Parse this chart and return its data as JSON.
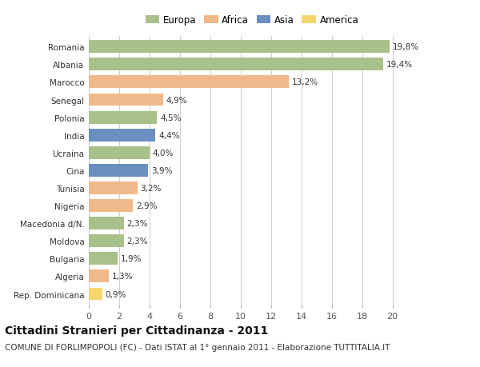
{
  "categories": [
    "Romania",
    "Albania",
    "Marocco",
    "Senegal",
    "Polonia",
    "India",
    "Ucraina",
    "Cina",
    "Tunisia",
    "Nigeria",
    "Macedonia d/N.",
    "Moldova",
    "Bulgaria",
    "Algeria",
    "Rep. Dominicana"
  ],
  "values": [
    19.8,
    19.4,
    13.2,
    4.9,
    4.5,
    4.4,
    4.0,
    3.9,
    3.2,
    2.9,
    2.3,
    2.3,
    1.9,
    1.3,
    0.9
  ],
  "labels": [
    "19,8%",
    "19,4%",
    "13,2%",
    "4,9%",
    "4,5%",
    "4,4%",
    "4,0%",
    "3,9%",
    "3,2%",
    "2,9%",
    "2,3%",
    "2,3%",
    "1,9%",
    "1,3%",
    "0,9%"
  ],
  "continents": [
    "Europa",
    "Europa",
    "Africa",
    "Africa",
    "Europa",
    "Asia",
    "Europa",
    "Asia",
    "Africa",
    "Africa",
    "Europa",
    "Europa",
    "Europa",
    "Africa",
    "America"
  ],
  "continent_colors": {
    "Europa": "#a8c08a",
    "Africa": "#f0b989",
    "Asia": "#6a8fc0",
    "America": "#f5d76e"
  },
  "legend_order": [
    "Europa",
    "Africa",
    "Asia",
    "America"
  ],
  "title": "Cittadini Stranieri per Cittadinanza - 2011",
  "subtitle": "COMUNE DI FORLIMPOPOLI (FC) - Dati ISTAT al 1° gennaio 2011 - Elaborazione TUTTITALIA.IT",
  "xlim": [
    0,
    21.5
  ],
  "xticks": [
    0,
    2,
    4,
    6,
    8,
    10,
    12,
    14,
    16,
    18,
    20
  ],
  "background_color": "#ffffff",
  "grid_color": "#cccccc",
  "bar_height": 0.72,
  "label_fontsize": 7.5,
  "title_fontsize": 10,
  "subtitle_fontsize": 7.5,
  "ytick_fontsize": 7.5,
  "xtick_fontsize": 8,
  "legend_fontsize": 8.5
}
